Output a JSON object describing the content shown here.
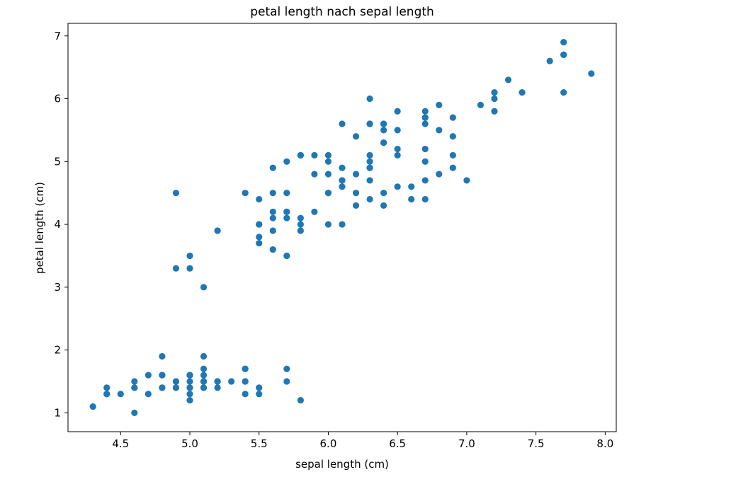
{
  "chart_data": {
    "type": "scatter",
    "title": "petal length nach sepal length",
    "xlabel": "sepal length (cm)",
    "ylabel": "petal length (cm)",
    "xlim": [
      4.12,
      8.08
    ],
    "ylim": [
      0.7,
      7.2
    ],
    "xticks": [
      "4.5",
      "5.0",
      "5.5",
      "6.0",
      "6.5",
      "7.0",
      "7.5",
      "8.0"
    ],
    "yticks": [
      "1",
      "2",
      "3",
      "4",
      "5",
      "6",
      "7"
    ],
    "grid": false,
    "point_color": "#1f77b4",
    "points": [
      [
        5.1,
        1.4
      ],
      [
        4.9,
        1.4
      ],
      [
        4.7,
        1.3
      ],
      [
        4.6,
        1.5
      ],
      [
        5.0,
        1.4
      ],
      [
        5.4,
        1.7
      ],
      [
        4.6,
        1.4
      ],
      [
        5.0,
        1.5
      ],
      [
        4.4,
        1.4
      ],
      [
        4.9,
        1.5
      ],
      [
        5.4,
        1.5
      ],
      [
        4.8,
        1.6
      ],
      [
        4.8,
        1.4
      ],
      [
        4.3,
        1.1
      ],
      [
        5.8,
        1.2
      ],
      [
        5.7,
        1.5
      ],
      [
        5.4,
        1.3
      ],
      [
        5.1,
        1.4
      ],
      [
        5.7,
        1.7
      ],
      [
        5.1,
        1.5
      ],
      [
        5.4,
        1.7
      ],
      [
        5.1,
        1.5
      ],
      [
        4.6,
        1.0
      ],
      [
        5.1,
        1.7
      ],
      [
        4.8,
        1.9
      ],
      [
        5.0,
        1.6
      ],
      [
        5.0,
        1.6
      ],
      [
        5.2,
        1.5
      ],
      [
        5.2,
        1.4
      ],
      [
        4.7,
        1.6
      ],
      [
        4.8,
        1.6
      ],
      [
        5.4,
        1.5
      ],
      [
        5.2,
        1.5
      ],
      [
        5.5,
        1.4
      ],
      [
        4.9,
        1.5
      ],
      [
        5.0,
        1.2
      ],
      [
        5.5,
        1.3
      ],
      [
        4.9,
        1.4
      ],
      [
        4.4,
        1.3
      ],
      [
        5.1,
        1.5
      ],
      [
        5.0,
        1.3
      ],
      [
        4.5,
        1.3
      ],
      [
        4.4,
        1.3
      ],
      [
        5.0,
        1.6
      ],
      [
        5.1,
        1.9
      ],
      [
        4.8,
        1.4
      ],
      [
        5.1,
        1.6
      ],
      [
        4.6,
        1.4
      ],
      [
        5.3,
        1.5
      ],
      [
        5.0,
        1.4
      ],
      [
        7.0,
        4.7
      ],
      [
        6.4,
        4.5
      ],
      [
        6.9,
        4.9
      ],
      [
        5.5,
        4.0
      ],
      [
        6.5,
        4.6
      ],
      [
        5.7,
        4.5
      ],
      [
        6.3,
        4.7
      ],
      [
        4.9,
        3.3
      ],
      [
        6.6,
        4.6
      ],
      [
        5.2,
        3.9
      ],
      [
        5.0,
        3.5
      ],
      [
        5.9,
        4.2
      ],
      [
        6.0,
        4.0
      ],
      [
        6.1,
        4.7
      ],
      [
        5.6,
        3.6
      ],
      [
        6.7,
        4.4
      ],
      [
        5.6,
        4.5
      ],
      [
        5.8,
        4.1
      ],
      [
        6.2,
        4.5
      ],
      [
        5.6,
        3.9
      ],
      [
        5.9,
        4.8
      ],
      [
        6.1,
        4.0
      ],
      [
        6.3,
        4.9
      ],
      [
        6.1,
        4.7
      ],
      [
        6.4,
        4.3
      ],
      [
        6.6,
        4.4
      ],
      [
        6.8,
        4.8
      ],
      [
        6.7,
        5.0
      ],
      [
        6.0,
        4.5
      ],
      [
        5.7,
        3.5
      ],
      [
        5.5,
        3.8
      ],
      [
        5.5,
        3.7
      ],
      [
        5.8,
        3.9
      ],
      [
        6.0,
        5.1
      ],
      [
        5.4,
        4.5
      ],
      [
        6.0,
        4.5
      ],
      [
        6.7,
        4.7
      ],
      [
        6.3,
        4.4
      ],
      [
        5.6,
        4.1
      ],
      [
        5.5,
        4.0
      ],
      [
        5.5,
        4.4
      ],
      [
        6.1,
        4.6
      ],
      [
        5.8,
        4.0
      ],
      [
        5.0,
        3.3
      ],
      [
        5.6,
        4.2
      ],
      [
        5.7,
        4.2
      ],
      [
        5.7,
        4.2
      ],
      [
        6.2,
        4.3
      ],
      [
        5.1,
        3.0
      ],
      [
        5.7,
        4.1
      ],
      [
        6.3,
        6.0
      ],
      [
        5.8,
        5.1
      ],
      [
        7.1,
        5.9
      ],
      [
        6.3,
        5.6
      ],
      [
        6.5,
        5.8
      ],
      [
        7.6,
        6.6
      ],
      [
        4.9,
        4.5
      ],
      [
        7.3,
        6.3
      ],
      [
        6.7,
        5.8
      ],
      [
        7.2,
        6.1
      ],
      [
        6.5,
        5.1
      ],
      [
        6.4,
        5.3
      ],
      [
        6.8,
        5.5
      ],
      [
        5.7,
        5.0
      ],
      [
        5.8,
        5.1
      ],
      [
        6.4,
        5.3
      ],
      [
        6.5,
        5.5
      ],
      [
        7.7,
        6.7
      ],
      [
        7.7,
        6.9
      ],
      [
        6.0,
        5.0
      ],
      [
        6.9,
        5.7
      ],
      [
        5.6,
        4.9
      ],
      [
        7.7,
        6.7
      ],
      [
        6.3,
        4.9
      ],
      [
        6.7,
        5.7
      ],
      [
        7.2,
        6.0
      ],
      [
        6.2,
        4.8
      ],
      [
        6.1,
        4.9
      ],
      [
        6.4,
        5.6
      ],
      [
        7.2,
        5.8
      ],
      [
        7.4,
        6.1
      ],
      [
        7.9,
        6.4
      ],
      [
        6.4,
        5.6
      ],
      [
        6.3,
        5.1
      ],
      [
        6.1,
        5.6
      ],
      [
        7.7,
        6.1
      ],
      [
        6.3,
        5.6
      ],
      [
        6.4,
        5.5
      ],
      [
        6.0,
        4.8
      ],
      [
        6.9,
        5.4
      ],
      [
        6.7,
        5.6
      ],
      [
        6.9,
        5.1
      ],
      [
        5.8,
        5.1
      ],
      [
        6.8,
        5.9
      ],
      [
        6.7,
        5.7
      ],
      [
        6.7,
        5.2
      ],
      [
        6.3,
        5.0
      ],
      [
        6.5,
        5.2
      ],
      [
        6.2,
        5.4
      ],
      [
        5.9,
        5.1
      ]
    ]
  }
}
